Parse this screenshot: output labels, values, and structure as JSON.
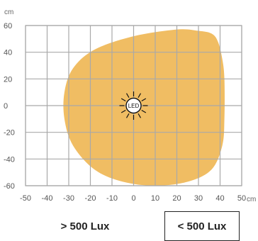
{
  "chart_data": {
    "type": "area",
    "x_unit": "cm",
    "y_unit": "cm",
    "x_ticks": [
      -50,
      -40,
      -30,
      -20,
      -10,
      0,
      10,
      20,
      30,
      40,
      50
    ],
    "y_ticks": [
      60,
      40,
      20,
      0,
      -20,
      -40,
      -60
    ],
    "xlim": [
      -50,
      50
    ],
    "ylim": [
      -60,
      60
    ],
    "grid": true,
    "source_label": "LED",
    "source_position": [
      0,
      0
    ],
    "zone_outline": [
      [
        20,
        57
      ],
      [
        30,
        56
      ],
      [
        36,
        54
      ],
      [
        39,
        48
      ],
      [
        41,
        35
      ],
      [
        42,
        20
      ],
      [
        42,
        -10
      ],
      [
        41,
        -30
      ],
      [
        36,
        -48
      ],
      [
        25,
        -57
      ],
      [
        10,
        -60
      ],
      [
        -5,
        -57
      ],
      [
        -18,
        -48
      ],
      [
        -28,
        -30
      ],
      [
        -32,
        -10
      ],
      [
        -32,
        10
      ],
      [
        -28,
        28
      ],
      [
        -18,
        42
      ],
      [
        0,
        52
      ],
      [
        20,
        57
      ]
    ],
    "zone_color": "#f0bd63",
    "legend": [
      {
        "label": "> 500 Lux",
        "color": "#f0bd63"
      },
      {
        "label": "< 500 Lux",
        "color": "#ffffff"
      }
    ]
  }
}
